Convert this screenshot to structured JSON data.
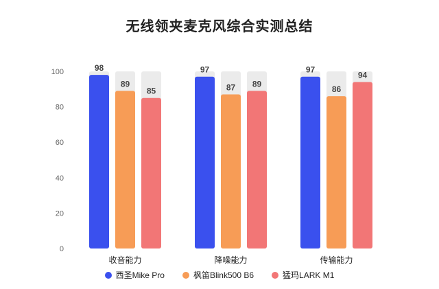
{
  "chart_data": {
    "type": "bar",
    "title": "无线领夹麦克风综合实测总结",
    "categories": [
      "收音能力",
      "降噪能力",
      "传输能力"
    ],
    "series": [
      {
        "name": "西圣Mike Pro",
        "values": [
          98,
          97,
          97
        ],
        "color": "#3A50EE"
      },
      {
        "name": "枫笛Blink500 B6",
        "values": [
          89,
          87,
          86
        ],
        "color": "#F79C56"
      },
      {
        "name": "猛玛LARK M1",
        "values": [
          85,
          89,
          94
        ],
        "color": "#F27676"
      }
    ],
    "ylim": [
      0,
      100
    ],
    "yticks": [
      0,
      20,
      40,
      60,
      80,
      100
    ],
    "background_track": true,
    "track_color": "#EBEBEB",
    "legend": "bottom",
    "grid": false
  }
}
